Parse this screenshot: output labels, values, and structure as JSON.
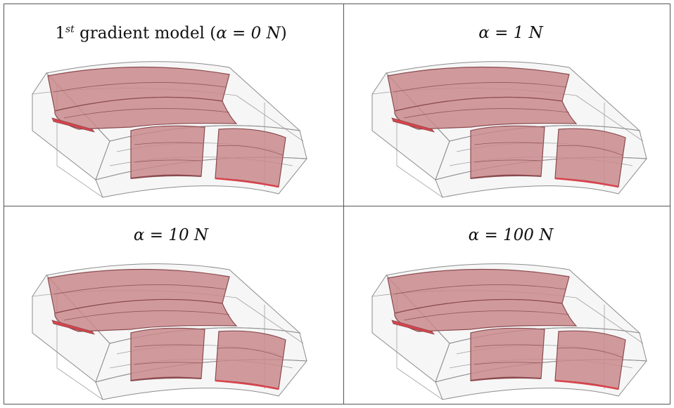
{
  "panels": [
    {
      "title_prefix": "1",
      "title_sup": "st",
      "title_text": " gradient model (",
      "title_alpha": "α = 0 N",
      "title_close": ")"
    },
    {
      "title_alpha": "α = 1 N"
    },
    {
      "title_alpha": "α = 10 N"
    },
    {
      "title_alpha": "α = 100 N"
    }
  ],
  "colors": {
    "shape_fill": "#c9898c",
    "shape_edge": "#8a4a4e",
    "shell_fill": "#eeeeee",
    "shell_edge": "#8c8c8c",
    "accent": "#d9434c"
  }
}
